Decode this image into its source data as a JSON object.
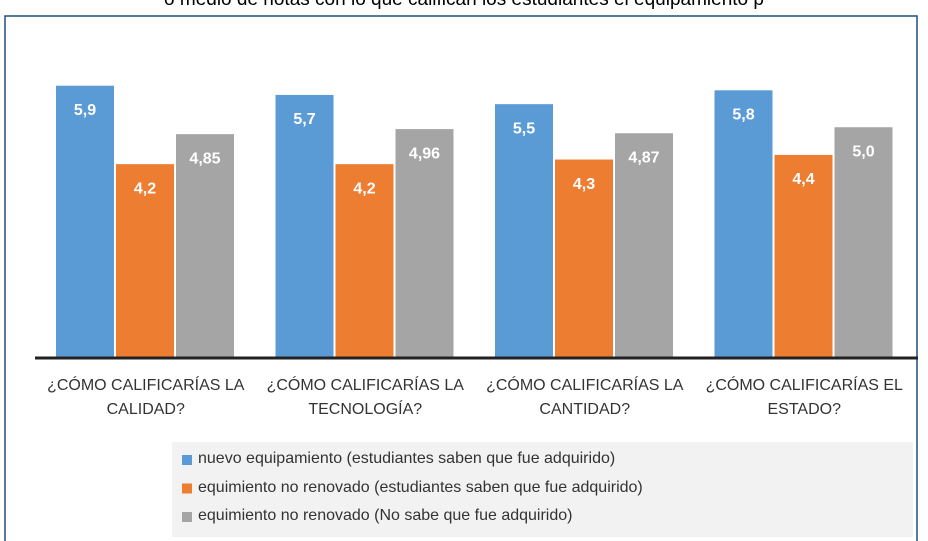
{
  "chart_data": {
    "type": "bar",
    "title": "o medio de notas con lo que califican los estudiantes el equipamiento p",
    "categories": [
      "¿CÓMO CALIFICARÍAS LA CALIDAD?",
      "¿CÓMO CALIFICARÍAS LA TECNOLOGÍA?",
      "¿CÓMO CALIFICARÍAS LA CANTIDAD?",
      "¿CÓMO CALIFICARÍAS EL ESTADO?"
    ],
    "series": [
      {
        "name": "nuevo equipamiento (estudiantes saben que fue adquirido)",
        "color": "#5b9bd5",
        "values": [
          5.9,
          5.7,
          5.5,
          5.8
        ],
        "value_labels": [
          "5,9",
          "5,7",
          "5,5",
          "5,8"
        ]
      },
      {
        "name": "equimiento no renovado (estudiantes saben que fue adquirido)",
        "color": "#ed7d31",
        "values": [
          4.2,
          4.2,
          4.3,
          4.4
        ],
        "value_labels": [
          "4,2",
          "4,2",
          "4,3",
          "4,4"
        ]
      },
      {
        "name": "equimiento no renovado (No sabe que fue adquirido)",
        "color": "#a5a5a5",
        "values": [
          4.85,
          4.96,
          4.87,
          5.0
        ],
        "value_labels": [
          "4,85",
          "4,96",
          "4,87",
          "5,0"
        ]
      }
    ],
    "ylim": [
      0,
      6.5
    ],
    "legend": "bottom"
  }
}
